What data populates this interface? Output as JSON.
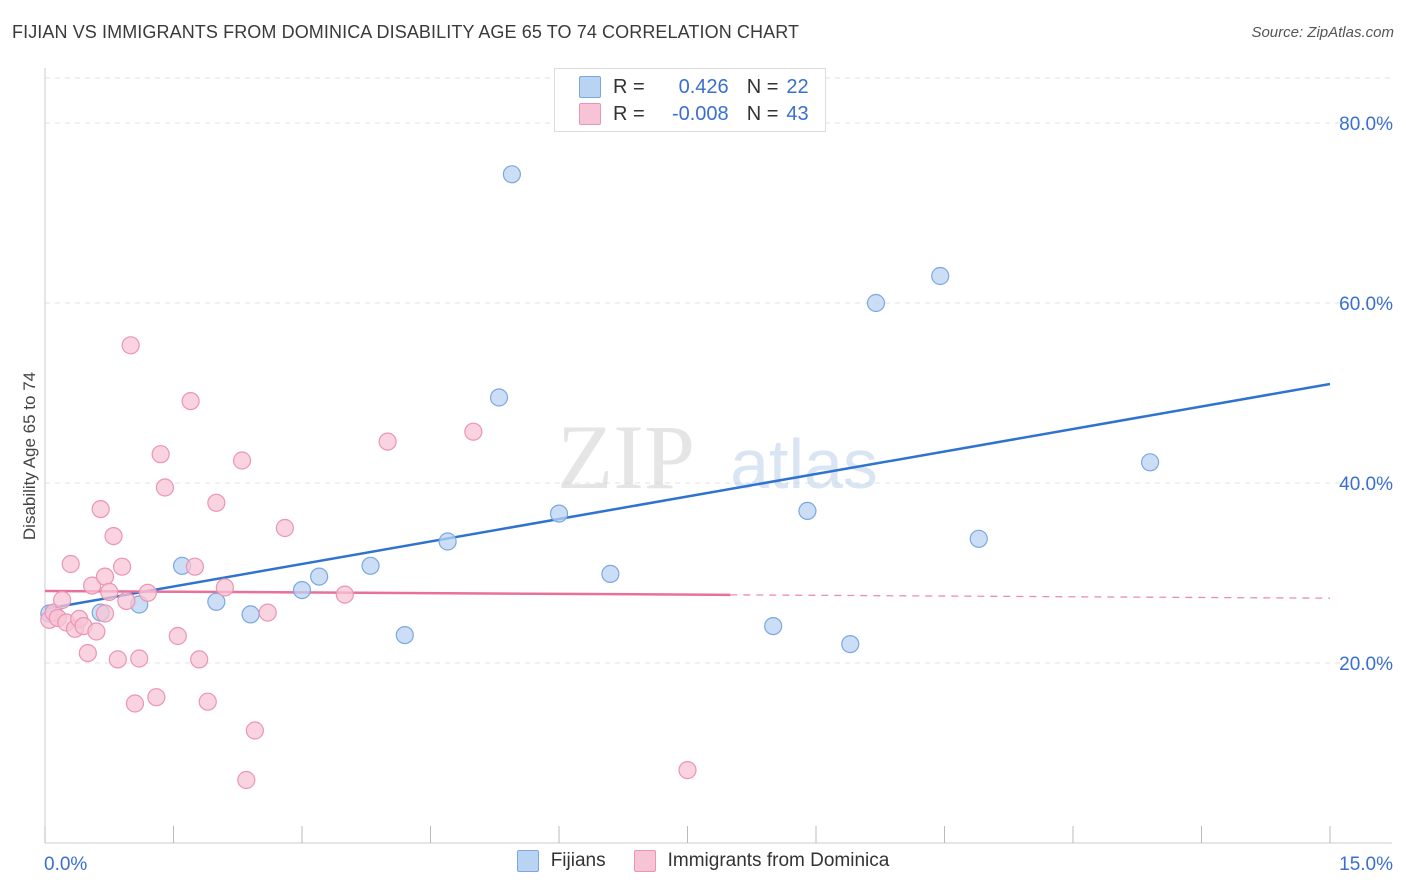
{
  "header": {
    "title": "FIJIAN VS IMMIGRANTS FROM DOMINICA DISABILITY AGE 65 TO 74 CORRELATION CHART",
    "source": "Source: ZipAtlas.com"
  },
  "watermark": {
    "zip": "ZIP",
    "atlas": "atlas"
  },
  "stats": {
    "fijians": {
      "r_label": "R =",
      "r_value": "0.426",
      "n_label": "N =",
      "n_value": "22"
    },
    "dominica": {
      "r_label": "R =",
      "r_value": "-0.008",
      "n_label": "N =",
      "n_value": "43"
    }
  },
  "colors": {
    "fijians_fill": "#b9d3f2",
    "fijians_stroke": "#7aa8e0",
    "fijians_line": "#2f73cf",
    "dominica_fill": "#f7c4d5",
    "dominica_stroke": "#ec94b3",
    "dominica_line": "#e8709a",
    "axis_text": "#3b6fcf",
    "grid": "#e2e2e2"
  },
  "chart_data": {
    "type": "scatter",
    "title": "FIJIAN VS IMMIGRANTS FROM DOMINICA DISABILITY AGE 65 TO 74 CORRELATION CHART",
    "xlabel": "",
    "ylabel": "Disability Age 65 to 74",
    "xlim": [
      0,
      15
    ],
    "ylim": [
      0,
      85
    ],
    "x_tick_labels": [
      {
        "value": 0,
        "label": "0.0%"
      },
      {
        "value": 15,
        "label": "15.0%"
      }
    ],
    "y_tick_labels": [
      {
        "value": 20,
        "label": "20.0%"
      },
      {
        "value": 40,
        "label": "40.0%"
      },
      {
        "value": 60,
        "label": "60.0%"
      },
      {
        "value": 80,
        "label": "80.0%"
      }
    ],
    "x_minor_ticks": [
      0,
      1.5,
      3,
      4.5,
      6,
      7.5,
      9,
      10.5,
      12,
      13.5,
      15
    ],
    "y_gridlines": [
      20,
      40,
      60,
      80
    ],
    "series": [
      {
        "name": "Fijians",
        "points": [
          [
            0.05,
            25.5
          ],
          [
            0.65,
            25.6
          ],
          [
            1.1,
            26.5
          ],
          [
            1.6,
            30.8
          ],
          [
            2.0,
            26.8
          ],
          [
            2.4,
            25.4
          ],
          [
            3.0,
            28.1
          ],
          [
            3.2,
            29.6
          ],
          [
            3.8,
            30.8
          ],
          [
            4.2,
            23.1
          ],
          [
            4.7,
            33.5
          ],
          [
            5.3,
            49.5
          ],
          [
            5.45,
            74.3
          ],
          [
            6.0,
            36.6
          ],
          [
            6.6,
            29.9
          ],
          [
            8.5,
            24.1
          ],
          [
            8.9,
            36.9
          ],
          [
            9.4,
            22.1
          ],
          [
            9.7,
            60.0
          ],
          [
            10.45,
            63.0
          ],
          [
            10.9,
            33.8
          ],
          [
            12.9,
            42.3
          ]
        ],
        "trend": {
          "x0": 0,
          "y0": 26.0,
          "x1": 15,
          "y1": 51.0,
          "dashed_from": null
        }
      },
      {
        "name": "Immigrants from Dominica",
        "points": [
          [
            0.05,
            24.8
          ],
          [
            0.1,
            25.6
          ],
          [
            0.15,
            25.0
          ],
          [
            0.2,
            27.0
          ],
          [
            0.25,
            24.5
          ],
          [
            0.3,
            31.0
          ],
          [
            0.35,
            23.8
          ],
          [
            0.4,
            24.9
          ],
          [
            0.45,
            24.1
          ],
          [
            0.5,
            21.1
          ],
          [
            0.55,
            28.6
          ],
          [
            0.6,
            23.5
          ],
          [
            0.65,
            37.1
          ],
          [
            0.7,
            29.6
          ],
          [
            0.75,
            27.9
          ],
          [
            0.8,
            34.1
          ],
          [
            0.85,
            20.4
          ],
          [
            0.9,
            30.7
          ],
          [
            0.95,
            26.9
          ],
          [
            1.0,
            55.3
          ],
          [
            1.05,
            15.5
          ],
          [
            1.1,
            20.5
          ],
          [
            1.2,
            27.8
          ],
          [
            1.3,
            16.2
          ],
          [
            1.35,
            43.2
          ],
          [
            1.4,
            39.5
          ],
          [
            1.55,
            23.0
          ],
          [
            1.7,
            49.1
          ],
          [
            1.75,
            30.7
          ],
          [
            1.8,
            20.4
          ],
          [
            1.9,
            15.7
          ],
          [
            2.0,
            37.8
          ],
          [
            2.1,
            28.4
          ],
          [
            2.3,
            42.5
          ],
          [
            2.35,
            7.0
          ],
          [
            2.45,
            12.5
          ],
          [
            2.6,
            25.6
          ],
          [
            2.8,
            35.0
          ],
          [
            3.5,
            27.6
          ],
          [
            4.0,
            44.6
          ],
          [
            5.0,
            45.7
          ],
          [
            7.5,
            8.1
          ],
          [
            0.7,
            25.5
          ]
        ],
        "trend": {
          "x0": 0,
          "y0": 28.0,
          "x1": 15,
          "y1": 27.2,
          "dashed_from": 8.0
        }
      }
    ]
  },
  "legend": {
    "fijians": "Fijians",
    "dominica": "Immigrants from Dominica"
  }
}
